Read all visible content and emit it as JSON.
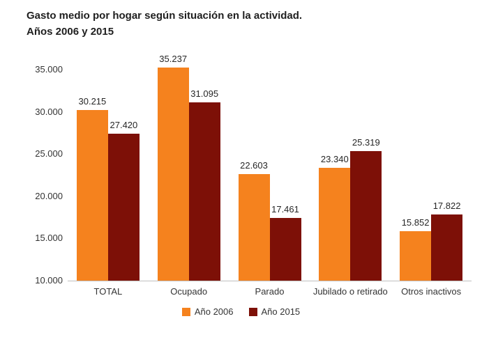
{
  "title": {
    "line1": "Gasto medio por hogar según situación en la actividad.",
    "line2": "Años 2006 y 2015"
  },
  "legend": [
    {
      "label": "Año 2006",
      "color": "#f5821e"
    },
    {
      "label": "Año 2015",
      "color": "#7d1007"
    }
  ],
  "chart_data": {
    "type": "bar",
    "title": "Gasto medio por hogar según situación en la actividad. Años 2006 y 2015",
    "categories": [
      "TOTAL",
      "Ocupado",
      "Parado",
      "Jubilado o retirado",
      "Otros inactivos"
    ],
    "series": [
      {
        "name": "Año 2006",
        "color": "#f5821e",
        "values": [
          30215,
          35237,
          22603,
          23340,
          15852
        ],
        "labels": [
          "30.215",
          "35.237",
          "22.603",
          "23.340",
          "15.852"
        ]
      },
      {
        "name": "Año 2015",
        "color": "#7d1007",
        "values": [
          27420,
          31095,
          17461,
          25319,
          17822
        ],
        "labels": [
          "27.420",
          "31.095",
          "17.461",
          "25.319",
          "17.822"
        ]
      }
    ],
    "xlabel": "",
    "ylabel": "",
    "ylim": [
      10000,
      35000
    ],
    "yticks": [
      10000,
      15000,
      20000,
      25000,
      30000,
      35000
    ],
    "ytick_labels": [
      "10.000",
      "15.000",
      "20.000",
      "25.000",
      "30.000",
      "35.000"
    ],
    "grid": false,
    "legend_position": "bottom"
  }
}
